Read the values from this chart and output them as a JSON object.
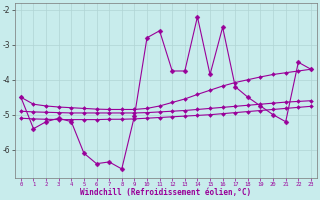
{
  "xlabel": "Windchill (Refroidissement éolien,°C)",
  "x": [
    0,
    1,
    2,
    3,
    4,
    5,
    6,
    7,
    8,
    9,
    10,
    11,
    12,
    13,
    14,
    15,
    16,
    17,
    18,
    19,
    20,
    21,
    22,
    23
  ],
  "line_main": [
    -4.5,
    -5.4,
    -5.2,
    -5.1,
    -5.2,
    -6.1,
    -6.4,
    -6.35,
    -6.55,
    -5.05,
    -2.8,
    -2.6,
    -3.75,
    -3.75,
    -2.2,
    -3.85,
    -2.5,
    -4.2,
    -4.5,
    -4.75,
    -5.0,
    -5.2,
    -3.5,
    -3.7
  ],
  "line_trend1": [
    -4.5,
    -4.7,
    -4.75,
    -4.78,
    -4.8,
    -4.82,
    -4.84,
    -4.85,
    -4.85,
    -4.85,
    -4.82,
    -4.75,
    -4.65,
    -4.55,
    -4.42,
    -4.3,
    -4.18,
    -4.08,
    -4.0,
    -3.92,
    -3.85,
    -3.8,
    -3.75,
    -3.7
  ],
  "line_trend2": [
    -4.9,
    -4.92,
    -4.93,
    -4.94,
    -4.95,
    -4.95,
    -4.95,
    -4.95,
    -4.95,
    -4.95,
    -4.94,
    -4.92,
    -4.9,
    -4.88,
    -4.85,
    -4.82,
    -4.79,
    -4.76,
    -4.73,
    -4.7,
    -4.67,
    -4.64,
    -4.62,
    -4.6
  ],
  "line_trend3": [
    -5.1,
    -5.12,
    -5.13,
    -5.14,
    -5.14,
    -5.14,
    -5.14,
    -5.13,
    -5.13,
    -5.12,
    -5.1,
    -5.08,
    -5.06,
    -5.04,
    -5.02,
    -5.0,
    -4.97,
    -4.94,
    -4.91,
    -4.88,
    -4.85,
    -4.82,
    -4.79,
    -4.76
  ],
  "color": "#990099",
  "bg_color": "#c8ecec",
  "xlabel_bg": "#9900aa",
  "grid_color": "#b0d4d4",
  "ylim": [
    -6.8,
    -1.8
  ],
  "yticks": [
    -6,
    -5,
    -4,
    -3,
    -2
  ],
  "xlim": [
    -0.5,
    23.5
  ]
}
